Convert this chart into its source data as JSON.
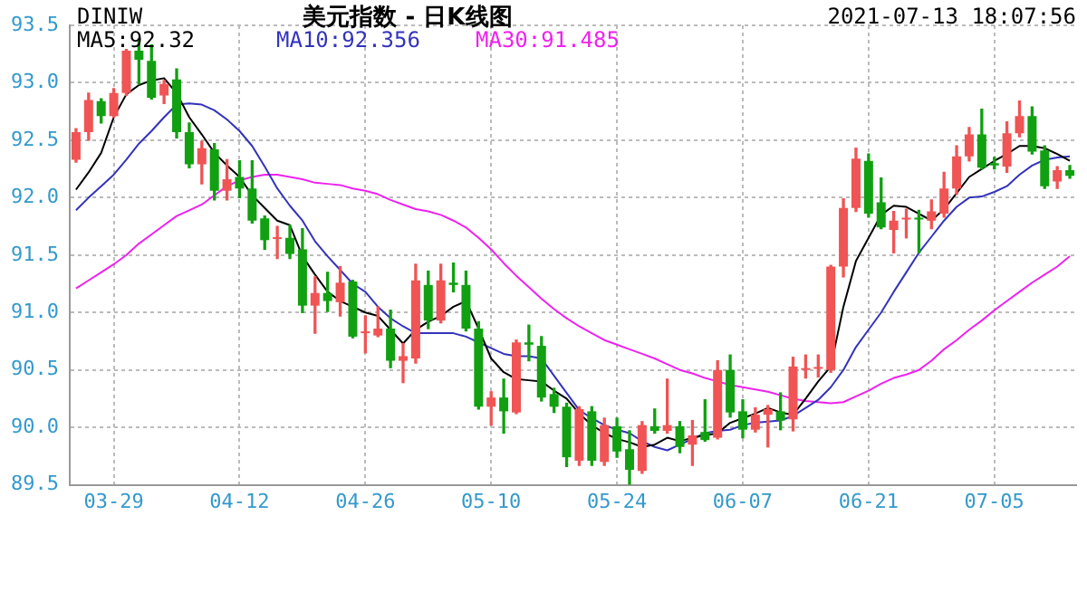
{
  "chart_data": {
    "type": "candlestick",
    "title": "美元指数 - 日K线图",
    "annotations": [
      "DINIW",
      "2021-07-13 18:07:56"
    ],
    "categories": [
      null,
      null,
      null,
      "03-29",
      null,
      null,
      null,
      null,
      null,
      null,
      null,
      null,
      null,
      "04-12",
      null,
      null,
      null,
      null,
      null,
      null,
      null,
      null,
      null,
      "04-26",
      null,
      null,
      null,
      null,
      null,
      null,
      null,
      null,
      null,
      "05-10",
      null,
      null,
      null,
      null,
      null,
      null,
      null,
      null,
      null,
      "05-24",
      null,
      null,
      null,
      null,
      null,
      null,
      null,
      null,
      null,
      "06-07",
      null,
      null,
      null,
      null,
      null,
      null,
      null,
      null,
      null,
      "06-21",
      null,
      null,
      null,
      null,
      null,
      null,
      null,
      null,
      null,
      "07-05",
      null,
      null,
      null,
      null,
      null,
      null
    ],
    "ohlc": [
      [
        92.33,
        92.6,
        92.31,
        92.57
      ],
      [
        92.57,
        92.91,
        92.5,
        92.85
      ],
      [
        92.84,
        92.86,
        92.65,
        92.71
      ],
      [
        92.71,
        92.95,
        92.7,
        92.91
      ],
      [
        92.91,
        93.29,
        92.89,
        93.28
      ],
      [
        93.28,
        93.38,
        92.99,
        93.2
      ],
      [
        93.19,
        93.33,
        92.86,
        92.87
      ],
      [
        92.89,
        93.02,
        92.82,
        92.99
      ],
      [
        93.03,
        93.12,
        92.52,
        92.57
      ],
      [
        92.57,
        92.65,
        92.26,
        92.29
      ],
      [
        92.29,
        92.49,
        92.12,
        92.43
      ],
      [
        92.42,
        92.47,
        91.98,
        92.06
      ],
      [
        92.06,
        92.33,
        91.98,
        92.16
      ],
      [
        92.18,
        92.32,
        92.0,
        92.08
      ],
      [
        92.08,
        92.32,
        91.78,
        91.8
      ],
      [
        91.82,
        91.84,
        91.55,
        91.63
      ],
      [
        91.64,
        91.75,
        91.47,
        91.65
      ],
      [
        91.65,
        91.76,
        91.47,
        91.51
      ],
      [
        91.55,
        91.73,
        91.0,
        91.06
      ],
      [
        91.06,
        91.31,
        90.82,
        91.17
      ],
      [
        91.17,
        91.35,
        91.01,
        91.1
      ],
      [
        91.09,
        91.4,
        90.97,
        91.26
      ],
      [
        91.27,
        91.28,
        90.78,
        90.79
      ],
      [
        90.82,
        90.97,
        90.65,
        90.83
      ],
      [
        90.8,
        91.05,
        90.79,
        90.86
      ],
      [
        90.86,
        91.02,
        90.52,
        90.58
      ],
      [
        90.58,
        90.73,
        90.39,
        90.62
      ],
      [
        90.6,
        91.42,
        90.56,
        91.28
      ],
      [
        91.24,
        91.36,
        90.86,
        90.93
      ],
      [
        90.93,
        91.42,
        90.91,
        91.28
      ],
      [
        91.26,
        91.43,
        91.18,
        91.24
      ],
      [
        91.24,
        91.36,
        90.84,
        90.86
      ],
      [
        90.86,
        90.92,
        90.16,
        90.18
      ],
      [
        90.18,
        90.31,
        90.02,
        90.26
      ],
      [
        90.26,
        90.42,
        89.95,
        90.14
      ],
      [
        90.13,
        90.76,
        90.12,
        90.74
      ],
      [
        90.74,
        90.89,
        90.58,
        90.72
      ],
      [
        90.71,
        90.79,
        90.23,
        90.26
      ],
      [
        90.29,
        90.34,
        90.13,
        90.18
      ],
      [
        90.18,
        90.21,
        89.66,
        89.74
      ],
      [
        89.71,
        90.18,
        89.67,
        90.16
      ],
      [
        90.14,
        90.18,
        89.67,
        89.71
      ],
      [
        89.7,
        90.08,
        89.67,
        90.02
      ],
      [
        90.01,
        90.08,
        89.74,
        89.79
      ],
      [
        89.81,
        89.97,
        89.5,
        89.63
      ],
      [
        89.62,
        90.05,
        89.6,
        90.02
      ],
      [
        90.01,
        90.16,
        89.95,
        89.97
      ],
      [
        89.97,
        90.42,
        89.95,
        90.02
      ],
      [
        90.01,
        90.05,
        89.78,
        89.83
      ],
      [
        89.85,
        90.06,
        89.67,
        89.93
      ],
      [
        89.96,
        90.24,
        89.88,
        89.89
      ],
      [
        89.91,
        90.58,
        89.9,
        90.5
      ],
      [
        90.5,
        90.63,
        90.09,
        90.13
      ],
      [
        90.14,
        90.24,
        89.91,
        89.98
      ],
      [
        89.98,
        90.17,
        89.96,
        90.11
      ],
      [
        90.11,
        90.19,
        89.83,
        90.16
      ],
      [
        90.14,
        90.3,
        89.98,
        90.06
      ],
      [
        90.07,
        90.61,
        89.97,
        90.53
      ],
      [
        90.5,
        90.63,
        90.43,
        90.51
      ],
      [
        90.51,
        90.63,
        90.44,
        90.52
      ],
      [
        90.5,
        91.41,
        90.48,
        91.4
      ],
      [
        91.4,
        91.99,
        91.31,
        91.91
      ],
      [
        91.91,
        92.43,
        91.88,
        92.34
      ],
      [
        92.32,
        92.38,
        91.83,
        91.86
      ],
      [
        91.96,
        92.17,
        91.73,
        91.74
      ],
      [
        91.72,
        91.88,
        91.52,
        91.8
      ],
      [
        91.81,
        91.9,
        91.65,
        91.82
      ],
      [
        91.82,
        91.89,
        91.52,
        91.81
      ],
      [
        91.8,
        91.98,
        91.73,
        91.88
      ],
      [
        91.86,
        92.22,
        91.83,
        92.08
      ],
      [
        92.08,
        92.45,
        92.03,
        92.36
      ],
      [
        92.36,
        92.61,
        92.32,
        92.55
      ],
      [
        92.55,
        92.77,
        92.25,
        92.26
      ],
      [
        92.3,
        92.35,
        92.25,
        92.28
      ],
      [
        92.27,
        92.66,
        92.22,
        92.56
      ],
      [
        92.56,
        92.84,
        92.53,
        92.71
      ],
      [
        92.71,
        92.79,
        92.38,
        92.4
      ],
      [
        92.41,
        92.45,
        92.08,
        92.1
      ],
      [
        92.14,
        92.27,
        92.08,
        92.24
      ],
      [
        92.24,
        92.28,
        92.17,
        92.19
      ]
    ],
    "colors": [
      "#f05454",
      "#f05454",
      "#11a011",
      "#f05454",
      "#f05454",
      "#11a011",
      "#11a011",
      "#f05454",
      "#11a011",
      "#11a011",
      "#f05454",
      "#11a011",
      "#f05454",
      "#11a011",
      "#11a011",
      "#11a011",
      "#f05454",
      "#11a011",
      "#11a011",
      "#f05454",
      "#11a011",
      "#f05454",
      "#11a011",
      "#f05454",
      "#f05454",
      "#11a011",
      "#f05454",
      "#f05454",
      "#11a011",
      "#f05454",
      "#11a011",
      "#11a011",
      "#11a011",
      "#f05454",
      "#11a011",
      "#f05454",
      "#11a011",
      "#11a011",
      "#11a011",
      "#11a011",
      "#f05454",
      "#11a011",
      "#f05454",
      "#11a011",
      "#11a011",
      "#f05454",
      "#11a011",
      "#f05454",
      "#11a011",
      "#f05454",
      "#11a011",
      "#f05454",
      "#11a011",
      "#11a011",
      "#f05454",
      "#f05454",
      "#11a011",
      "#f05454",
      "#f05454",
      "#f05454",
      "#f05454",
      "#f05454",
      "#f05454",
      "#11a011",
      "#11a011",
      "#f05454",
      "#f05454",
      "#11a011",
      "#f05454",
      "#f05454",
      "#f05454",
      "#f05454",
      "#11a011",
      "#11a011",
      "#f05454",
      "#f05454",
      "#11a011",
      "#11a011",
      "#f05454",
      "#11a011"
    ],
    "series": [
      {
        "name": "MA5:92.32",
        "type": "line",
        "color": "#000000",
        "values": [
          92.07,
          92.22,
          92.39,
          92.7,
          92.9,
          92.98,
          93.02,
          93.04,
          92.91,
          92.7,
          92.55,
          92.39,
          92.28,
          92.18,
          92.02,
          91.91,
          91.8,
          91.76,
          91.49,
          91.33,
          91.18,
          91.1,
          91.05,
          91.0,
          90.97,
          90.85,
          90.73,
          90.85,
          90.92,
          90.97,
          91.05,
          91.1,
          90.86,
          90.6,
          90.48,
          90.42,
          90.41,
          90.4,
          90.32,
          90.25,
          90.12,
          90.02,
          89.95,
          89.9,
          89.87,
          89.83,
          89.85,
          89.91,
          89.88,
          89.91,
          89.93,
          89.95,
          90.04,
          90.08,
          90.12,
          90.17,
          90.13,
          90.11,
          90.25,
          90.4,
          90.53,
          91.05,
          91.45,
          91.65,
          91.85,
          91.93,
          91.92,
          91.86,
          91.8,
          91.9,
          92.04,
          92.18,
          92.25,
          92.32,
          92.38,
          92.45,
          92.45,
          92.43,
          92.38,
          92.32
        ]
      },
      {
        "name": "MA10:92.356",
        "type": "line",
        "color": "#3333bb",
        "values": [
          91.89,
          92.0,
          92.1,
          92.2,
          92.33,
          92.47,
          92.58,
          92.7,
          92.81,
          92.82,
          92.81,
          92.76,
          92.68,
          92.58,
          92.45,
          92.27,
          92.08,
          91.93,
          91.8,
          91.62,
          91.49,
          91.37,
          91.25,
          91.18,
          91.05,
          90.95,
          90.88,
          90.82,
          90.82,
          90.82,
          90.82,
          90.79,
          90.74,
          90.69,
          90.64,
          90.62,
          90.62,
          90.6,
          90.45,
          90.3,
          90.15,
          90.08,
          90.02,
          89.98,
          89.95,
          89.88,
          89.83,
          89.8,
          89.85,
          89.9,
          89.95,
          89.97,
          89.98,
          90.02,
          90.04,
          90.05,
          90.06,
          90.1,
          90.17,
          90.24,
          90.35,
          90.5,
          90.7,
          90.85,
          91.0,
          91.18,
          91.35,
          91.52,
          91.66,
          91.8,
          91.92,
          92.0,
          92.01,
          92.05,
          92.1,
          92.2,
          92.28,
          92.33,
          92.35,
          92.36
        ]
      },
      {
        "name": "MA30:91.485",
        "type": "line",
        "color": "#ee22ee",
        "values": [
          91.21,
          91.28,
          91.35,
          91.42,
          91.5,
          91.6,
          91.68,
          91.76,
          91.84,
          91.89,
          91.94,
          92.02,
          92.1,
          92.15,
          92.18,
          92.2,
          92.2,
          92.18,
          92.16,
          92.13,
          92.12,
          92.11,
          92.08,
          92.06,
          92.03,
          91.98,
          91.94,
          91.9,
          91.88,
          91.85,
          91.8,
          91.74,
          91.65,
          91.55,
          91.43,
          91.32,
          91.22,
          91.12,
          91.03,
          90.95,
          90.88,
          90.82,
          90.76,
          90.72,
          90.68,
          90.64,
          90.6,
          90.55,
          90.5,
          90.47,
          90.43,
          90.4,
          90.37,
          90.35,
          90.33,
          90.31,
          90.28,
          90.25,
          90.23,
          90.22,
          90.21,
          90.22,
          90.27,
          90.32,
          90.38,
          90.43,
          90.46,
          90.5,
          90.58,
          90.68,
          90.76,
          90.85,
          90.93,
          91.02,
          91.1,
          91.18,
          91.26,
          91.33,
          91.4,
          91.49
        ]
      }
    ],
    "ylim": [
      89.5,
      93.5
    ],
    "yticks": [
      89.5,
      {
        "value": 90,
        "label": "90.0"
      },
      90.5,
      {
        "value": 91,
        "label": "91.0"
      },
      91.5,
      {
        "value": 92,
        "label": "92.0"
      },
      92.5,
      {
        "value": 93,
        "label": "93.0"
      },
      93.5
    ],
    "grid": true,
    "legend": "top left",
    "marker": "none"
  }
}
